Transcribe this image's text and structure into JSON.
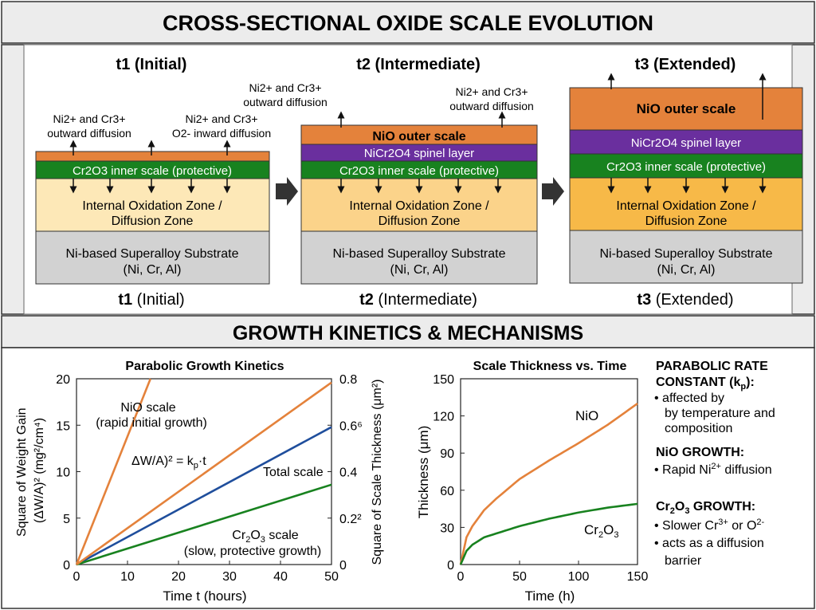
{
  "header": {
    "title": "CROSS-SECTIONAL OXIDE SCALE EVOLUTION"
  },
  "stage1": {
    "title": "t1 (Initial)",
    "ann_left": [
      "Ni2+ and Cr3+",
      "outward diffusion"
    ],
    "ann_right": [
      "Ni2+ and Cr3+",
      "O2- inward diffusion"
    ],
    "cr_label": "Cr2O3 inner scale (protective)",
    "ioz_label": [
      "Internal Oxidation Zone /",
      "Diffusion Zone"
    ],
    "substrate_label": [
      "Ni-based Superalloy Substrate",
      "(Ni, Cr, Al)"
    ],
    "caption_bold": "t1",
    "caption_rest": " (Initial)"
  },
  "stage2": {
    "title": "t2 (Intermediate)",
    "ann_left": [
      "Ni2+ and Cr3+",
      "outward diffusion"
    ],
    "ann_right": [
      "Ni2+ and Cr3+",
      "outward diffusion"
    ],
    "nio_label": "NiO outer scale",
    "spinel_label": "NiCr2O4 spinel layer",
    "cr_label": "Cr2O3 inner scale (protective)",
    "ioz_label": [
      "Internal Oxidation Zone /",
      "Diffusion Zone"
    ],
    "substrate_label": [
      "Ni-based Superalloy Substrate",
      "(Ni, Cr, Al)"
    ],
    "caption_bold": "t2",
    "caption_rest": " (Intermediate)"
  },
  "stage3": {
    "title": "t3 (Extended)",
    "nio_label": "NiO outer scale",
    "spinel_label": "NiCr2O4 spinel layer",
    "cr_label": "Cr2O3 inner scale (protective)",
    "ioz_label": [
      "Internal Oxidation Zone /",
      "Diffusion Zone"
    ],
    "substrate_label": [
      "Ni-based Superalloy Substrate",
      "(Ni, Cr, Al)"
    ],
    "caption_bold": "t3",
    "caption_rest": " (Extended)"
  },
  "section2": {
    "title": "GROWTH KINETICS & MECHANISMS"
  },
  "colors": {
    "nio": "#e4823b",
    "spinel": "#6a2f9e",
    "cr2o3": "#18821f",
    "ioz1": "#fde8b7",
    "ioz2": "#fbd38a",
    "ioz3": "#f7b948",
    "substrate": "#d2d2d2",
    "total": "#1f4e9c"
  },
  "chart_data": [
    {
      "type": "line",
      "title": "Parabolic Growth Kinetics",
      "xlabel": "Time t (hours)",
      "ylabel": "Square of Weight Gain (ΔW/A)² (mg²/cm⁴)",
      "y2label": "Square of Scale Thickness (μm²)",
      "xlim": [
        0,
        50
      ],
      "ylim": [
        0,
        20
      ],
      "y2lim": [
        0,
        0.8
      ],
      "xticks": [
        "0",
        "10",
        "20",
        "30",
        "40",
        "50"
      ],
      "yticks": [
        "0",
        "5",
        "10",
        "15",
        "20"
      ],
      "y2ticks": [
        "0",
        "0.2²",
        "0.4",
        "0.6⁶",
        "0.8"
      ],
      "series": [
        {
          "name": "NiO scale",
          "x": [
            0,
            14.5
          ],
          "y": [
            0,
            20
          ]
        },
        {
          "name": "Total scale",
          "x": [
            0,
            50
          ],
          "y": [
            0,
            14.8
          ]
        },
        {
          "name": "Cr2O3 scale",
          "x": [
            0,
            50
          ],
          "y": [
            0,
            8.6
          ]
        },
        {
          "name": "unlabeled",
          "x": [
            0,
            50
          ],
          "y": [
            0,
            19.6
          ]
        }
      ],
      "annotations": {
        "nio": [
          "NiO scale",
          "(rapid initial growth)"
        ],
        "equation": "ΔW/A)² = kp·t",
        "total": "Total scale",
        "cr": [
          "Cr2O3 scale",
          "(slow, protective growth)"
        ]
      }
    },
    {
      "type": "line",
      "title": "Scale Thickness vs. Time",
      "xlabel": "Time (h)",
      "ylabel": "Thickness (μm)",
      "xlim": [
        0,
        150
      ],
      "ylim": [
        0,
        150
      ],
      "xticks": [
        "0",
        "50",
        "100",
        "150"
      ],
      "yticks": [
        "0",
        "30",
        "60",
        "90",
        "120",
        "150"
      ],
      "series": [
        {
          "name": "NiO",
          "x": [
            0,
            5,
            10,
            20,
            30,
            50,
            75,
            100,
            125,
            150
          ],
          "y": [
            0,
            22,
            31,
            44,
            53,
            69,
            84,
            98,
            113,
            130
          ]
        },
        {
          "name": "Cr2O3",
          "x": [
            0,
            5,
            10,
            20,
            30,
            50,
            75,
            100,
            125,
            150
          ],
          "y": [
            0,
            11,
            16,
            22,
            25,
            31,
            37,
            42,
            46,
            49
          ]
        }
      ],
      "annotations": {
        "nio": "NiO",
        "cr": "Cr2O3"
      }
    }
  ],
  "notes": {
    "kp_title": [
      "PARABOLIC RATE",
      "CONSTANT (kp):"
    ],
    "kp_bullet": [
      "affected by",
      "by temperature and",
      "composition"
    ],
    "nio_title": "NiO GROWTH:",
    "nio_bullet": "Rapid Ni2+ diffusion",
    "cr_title": "Cr2O3 GROWTH:",
    "cr_bullets": [
      "Slower Cr3+ or O2-",
      "acts as a diffusion",
      "barrier"
    ]
  }
}
